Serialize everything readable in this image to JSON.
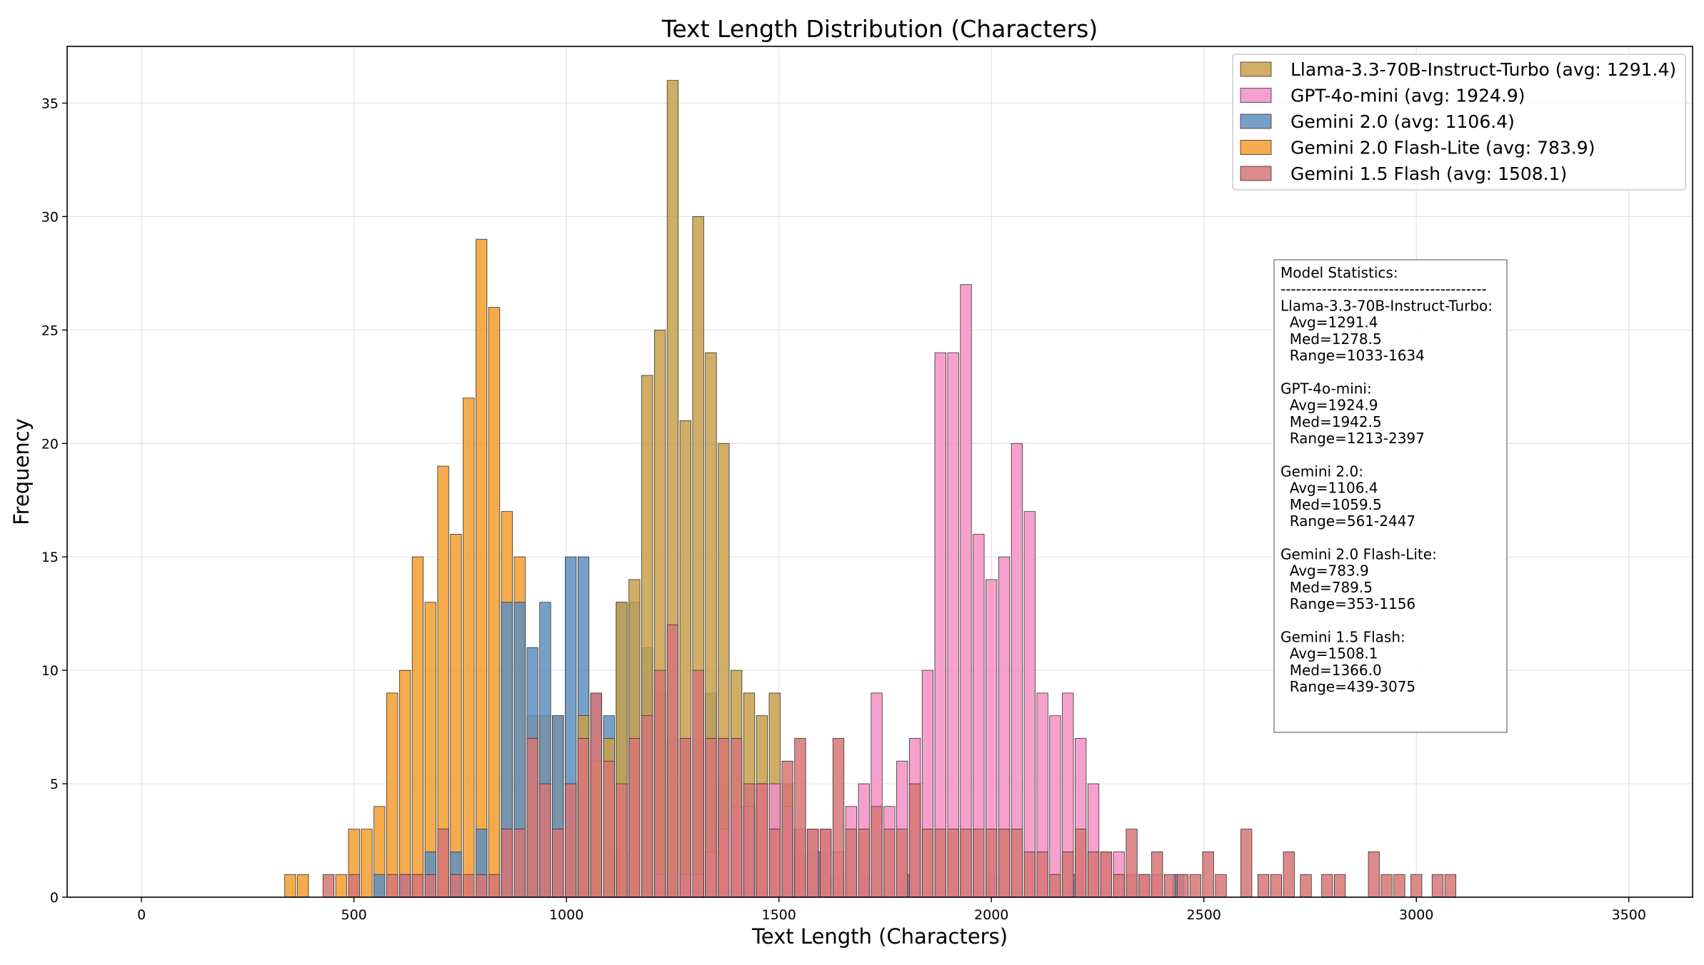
{
  "chart_data": {
    "type": "bar",
    "title": "Text Length Distribution (Characters)",
    "xlabel": "Text Length (Characters)",
    "ylabel": "Frequency",
    "xlim": [
      -175,
      3650
    ],
    "ylim": [
      0,
      37.5
    ],
    "xticks": [
      0,
      500,
      1000,
      1500,
      2000,
      2500,
      3000,
      3500
    ],
    "yticks": [
      0,
      5,
      10,
      15,
      20,
      25,
      30,
      35
    ],
    "grid": true,
    "legend_position": "top-right",
    "bar_width": 26,
    "series": [
      {
        "name": "Gemini 2.0 Flash-Lite",
        "legend": "Gemini 2.0 Flash-Lite (avg: 783.9)",
        "color": "#f59c2e",
        "x": [
          350,
          380,
          470,
          500,
          530,
          560,
          590,
          620,
          650,
          680,
          710,
          740,
          770,
          800,
          830,
          860,
          890,
          920,
          950,
          980,
          1010,
          1040,
          1070,
          1100,
          1130,
          1160
        ],
        "values": [
          1,
          1,
          1,
          3,
          3,
          4,
          9,
          10,
          15,
          13,
          19,
          16,
          22,
          29,
          26,
          17,
          15,
          8,
          8,
          8,
          5,
          7,
          5,
          3,
          2,
          2
        ]
      },
      {
        "name": "Gemini 2.0",
        "legend": "Gemini 2.0 (avg: 1106.4)",
        "color": "#5f8fbf",
        "x": [
          560,
          620,
          680,
          740,
          800,
          860,
          890,
          920,
          950,
          980,
          1010,
          1040,
          1070,
          1100,
          1130,
          1160,
          1190,
          1220,
          1250,
          1280,
          1310,
          1340,
          1370,
          1400,
          1430,
          1460,
          1490,
          1520,
          1550,
          1600,
          1700,
          1800,
          2000,
          2200,
          2440
        ],
        "values": [
          1,
          1,
          2,
          2,
          3,
          13,
          13,
          11,
          13,
          8,
          15,
          15,
          9,
          8,
          13,
          13,
          11,
          9,
          7,
          7,
          7,
          9,
          5,
          4,
          4,
          3,
          5,
          3,
          2,
          2,
          1,
          1,
          1,
          1,
          1
        ]
      },
      {
        "name": "Llama-3.3-70B-Instruct-Turbo",
        "legend": "Llama-3.3-70B-Instruct-Turbo (avg: 1291.4)",
        "color": "#c8a04a",
        "x": [
          1040,
          1070,
          1100,
          1130,
          1160,
          1190,
          1220,
          1250,
          1280,
          1310,
          1340,
          1370,
          1400,
          1430,
          1460,
          1490,
          1520,
          1550,
          1580,
          1610,
          1640
        ],
        "values": [
          8,
          6,
          7,
          13,
          14,
          23,
          25,
          36,
          21,
          30,
          24,
          20,
          10,
          9,
          8,
          9,
          5,
          3,
          2,
          1,
          1
        ]
      },
      {
        "name": "GPT-4o-mini",
        "legend": "GPT-4o-mini (avg: 1924.9)",
        "color": "#f48fc6",
        "x": [
          1220,
          1280,
          1310,
          1340,
          1370,
          1400,
          1430,
          1460,
          1490,
          1520,
          1550,
          1580,
          1610,
          1640,
          1670,
          1700,
          1730,
          1760,
          1790,
          1820,
          1850,
          1880,
          1910,
          1940,
          1970,
          2000,
          2030,
          2060,
          2090,
          2120,
          2150,
          2180,
          2210,
          2240,
          2270,
          2300,
          2330,
          2360,
          2390
        ],
        "values": [
          1,
          1,
          1,
          2,
          3,
          4,
          4,
          5,
          5,
          4,
          3,
          3,
          3,
          2,
          4,
          5,
          9,
          4,
          6,
          7,
          10,
          24,
          24,
          27,
          16,
          14,
          15,
          20,
          17,
          9,
          8,
          9,
          7,
          5,
          2,
          2,
          1,
          1,
          1
        ]
      },
      {
        "name": "Gemini 1.5 Flash",
        "legend": "Gemini 1.5 Flash (avg: 1508.1)",
        "color": "#d77676",
        "x": [
          440,
          500,
          590,
          620,
          650,
          680,
          710,
          740,
          770,
          800,
          830,
          860,
          890,
          920,
          950,
          980,
          1010,
          1040,
          1070,
          1100,
          1130,
          1160,
          1190,
          1220,
          1250,
          1280,
          1310,
          1340,
          1370,
          1400,
          1430,
          1460,
          1490,
          1520,
          1550,
          1580,
          1610,
          1640,
          1670,
          1700,
          1730,
          1760,
          1790,
          1820,
          1850,
          1880,
          1910,
          1940,
          1970,
          2000,
          2030,
          2060,
          2090,
          2120,
          2150,
          2180,
          2210,
          2240,
          2270,
          2300,
          2330,
          2360,
          2390,
          2420,
          2450,
          2480,
          2510,
          2540,
          2600,
          2640,
          2670,
          2700,
          2740,
          2790,
          2820,
          2900,
          2930,
          2960,
          3000,
          3050,
          3080
        ],
        "values": [
          1,
          1,
          1,
          1,
          1,
          1,
          3,
          1,
          1,
          1,
          1,
          3,
          3,
          7,
          5,
          3,
          5,
          7,
          9,
          6,
          5,
          7,
          8,
          10,
          12,
          7,
          10,
          7,
          7,
          7,
          5,
          5,
          3,
          6,
          7,
          3,
          3,
          7,
          3,
          3,
          4,
          3,
          3,
          5,
          3,
          3,
          3,
          3,
          3,
          3,
          3,
          3,
          2,
          2,
          1,
          2,
          3,
          2,
          2,
          1,
          3,
          1,
          2,
          1,
          1,
          1,
          2,
          1,
          3,
          1,
          1,
          2,
          1,
          1,
          1,
          2,
          1,
          1,
          1,
          1,
          1
        ]
      }
    ],
    "legend_order": [
      "Llama-3.3-70B-Instruct-Turbo",
      "GPT-4o-mini",
      "Gemini 2.0",
      "Gemini 2.0 Flash-Lite",
      "Gemini 1.5 Flash"
    ],
    "stats_box": [
      "Model Statistics:",
      "----------------------------------------",
      "Llama-3.3-70B-Instruct-Turbo:",
      "  Avg=1291.4",
      "  Med=1278.5",
      "  Range=1033-1634",
      "",
      "GPT-4o-mini:",
      "  Avg=1924.9",
      "  Med=1942.5",
      "  Range=1213-2397",
      "",
      "Gemini 2.0:",
      "  Avg=1106.4",
      "  Med=1059.5",
      "  Range=561-2447",
      "",
      "Gemini 2.0 Flash-Lite:",
      "  Avg=783.9",
      "  Med=789.5",
      "  Range=353-1156",
      "",
      "Gemini 1.5 Flash:",
      "  Avg=1508.1",
      "  Med=1366.0",
      "  Range=439-3075"
    ]
  }
}
